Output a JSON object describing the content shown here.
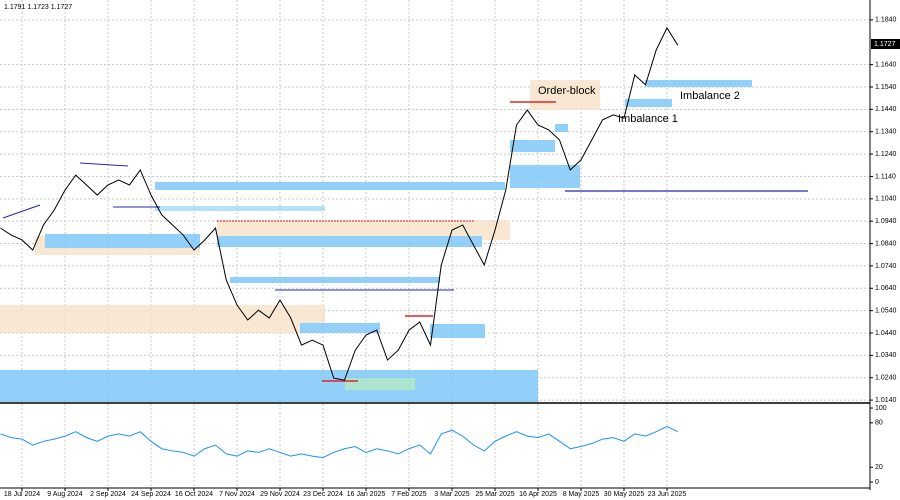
{
  "header": {
    "ohlc": "1.1791 1.1723 1.1727"
  },
  "current_price": {
    "label": "1.1727"
  },
  "annotations": {
    "order_block": "Order-block",
    "imbalance_2": "Imbalance 2",
    "imbalance_1": "Imbalance 1"
  },
  "chart_data": [
    {
      "type": "line",
      "categories": [
        null,
        null,
        "18 Jul 2024",
        null,
        null,
        null,
        "9 Aug 2024",
        null,
        null,
        null,
        "2 Sep 2024",
        null,
        null,
        null,
        "24 Sep 2024",
        null,
        null,
        null,
        "16 Oct 2024",
        null,
        null,
        null,
        "7 Nov 2024",
        null,
        null,
        null,
        "29 Nov 2024",
        null,
        null,
        null,
        "23 Dec 2024",
        null,
        null,
        null,
        "16 Jan 2025",
        null,
        null,
        null,
        "7 Feb 2025",
        null,
        null,
        null,
        "3 Mar 2025",
        null,
        null,
        null,
        "25 Mar 2025",
        null,
        null,
        null,
        "16 Apr 2025",
        null,
        null,
        null,
        "8 May 2025",
        null,
        null,
        null,
        "30 May 2025",
        null,
        null,
        null,
        "23 Jun 2025",
        null
      ],
      "series": [
        {
          "color": "#000000",
          "values": [
            1.0909,
            1.0878,
            1.0856,
            1.0811,
            1.0923,
            1.099,
            1.1079,
            1.1146,
            1.1102,
            1.1057,
            1.1102,
            1.1124,
            1.1102,
            1.1169,
            1.1057,
            1.0968,
            1.0923,
            1.0878,
            1.0811,
            1.0856,
            1.0909,
            1.0677,
            1.0565,
            1.0498,
            1.0542,
            1.0507,
            1.0587,
            1.0507,
            1.0386,
            1.0408,
            1.0386,
            1.0238,
            1.0229,
            1.0363,
            1.0431,
            1.0453,
            1.0319,
            1.0363,
            1.0453,
            1.0489,
            1.0386,
            1.0744,
            1.09,
            1.0923,
            1.0833,
            1.0744,
            1.09,
            1.1079,
            1.137,
            1.1437,
            1.137,
            1.1348,
            1.1303,
            1.1169,
            1.1214,
            1.1303,
            1.1393,
            1.1415,
            1.1401,
            1.1594,
            1.155,
            1.1706,
            1.1804,
            1.1727
          ]
        }
      ],
      "ylim": [
        1.0127,
        1.1929
      ],
      "yticks": [
        {
          "value": 1.184,
          "label": "1.1840"
        },
        {
          "value": 1.164,
          "label": "1.1640"
        },
        {
          "value": 1.154,
          "label": "1.1540"
        },
        {
          "value": 1.144,
          "label": "1.1440"
        },
        {
          "value": 1.134,
          "label": "1.1340"
        },
        {
          "value": 1.124,
          "label": "1.1240"
        },
        {
          "value": 1.114,
          "label": "1.1140"
        },
        {
          "value": 1.104,
          "label": "1.1040"
        },
        {
          "value": 1.094,
          "label": "1.0940"
        },
        {
          "value": 1.084,
          "label": "1.0840"
        },
        {
          "value": 1.074,
          "label": "1.0740"
        },
        {
          "value": 1.064,
          "label": "1.0640"
        },
        {
          "value": 1.054,
          "label": "1.0540"
        },
        {
          "value": 1.044,
          "label": "1.0440"
        },
        {
          "value": 1.034,
          "label": "1.0340"
        },
        {
          "value": 1.024,
          "label": "1.0240"
        },
        {
          "value": 1.014,
          "label": "1.0140"
        }
      ],
      "grid": true
    },
    {
      "type": "line",
      "series": [
        {
          "color": "#1e90ff",
          "values": [
            65,
            60,
            58,
            50,
            55,
            58,
            62,
            68,
            60,
            55,
            62,
            65,
            62,
            68,
            55,
            45,
            42,
            40,
            35,
            45,
            50,
            38,
            35,
            42,
            40,
            45,
            40,
            35,
            38,
            35,
            33,
            40,
            45,
            48,
            40,
            45,
            42,
            38,
            45,
            50,
            38,
            65,
            70,
            62,
            50,
            42,
            55,
            62,
            68,
            62,
            60,
            65,
            55,
            45,
            48,
            52,
            58,
            60,
            55,
            65,
            62,
            68,
            75,
            68
          ]
        }
      ],
      "ylim": [
        -10.8,
        106.8
      ],
      "yticks": [
        100,
        80,
        20,
        0
      ],
      "grid": false
    }
  ]
}
